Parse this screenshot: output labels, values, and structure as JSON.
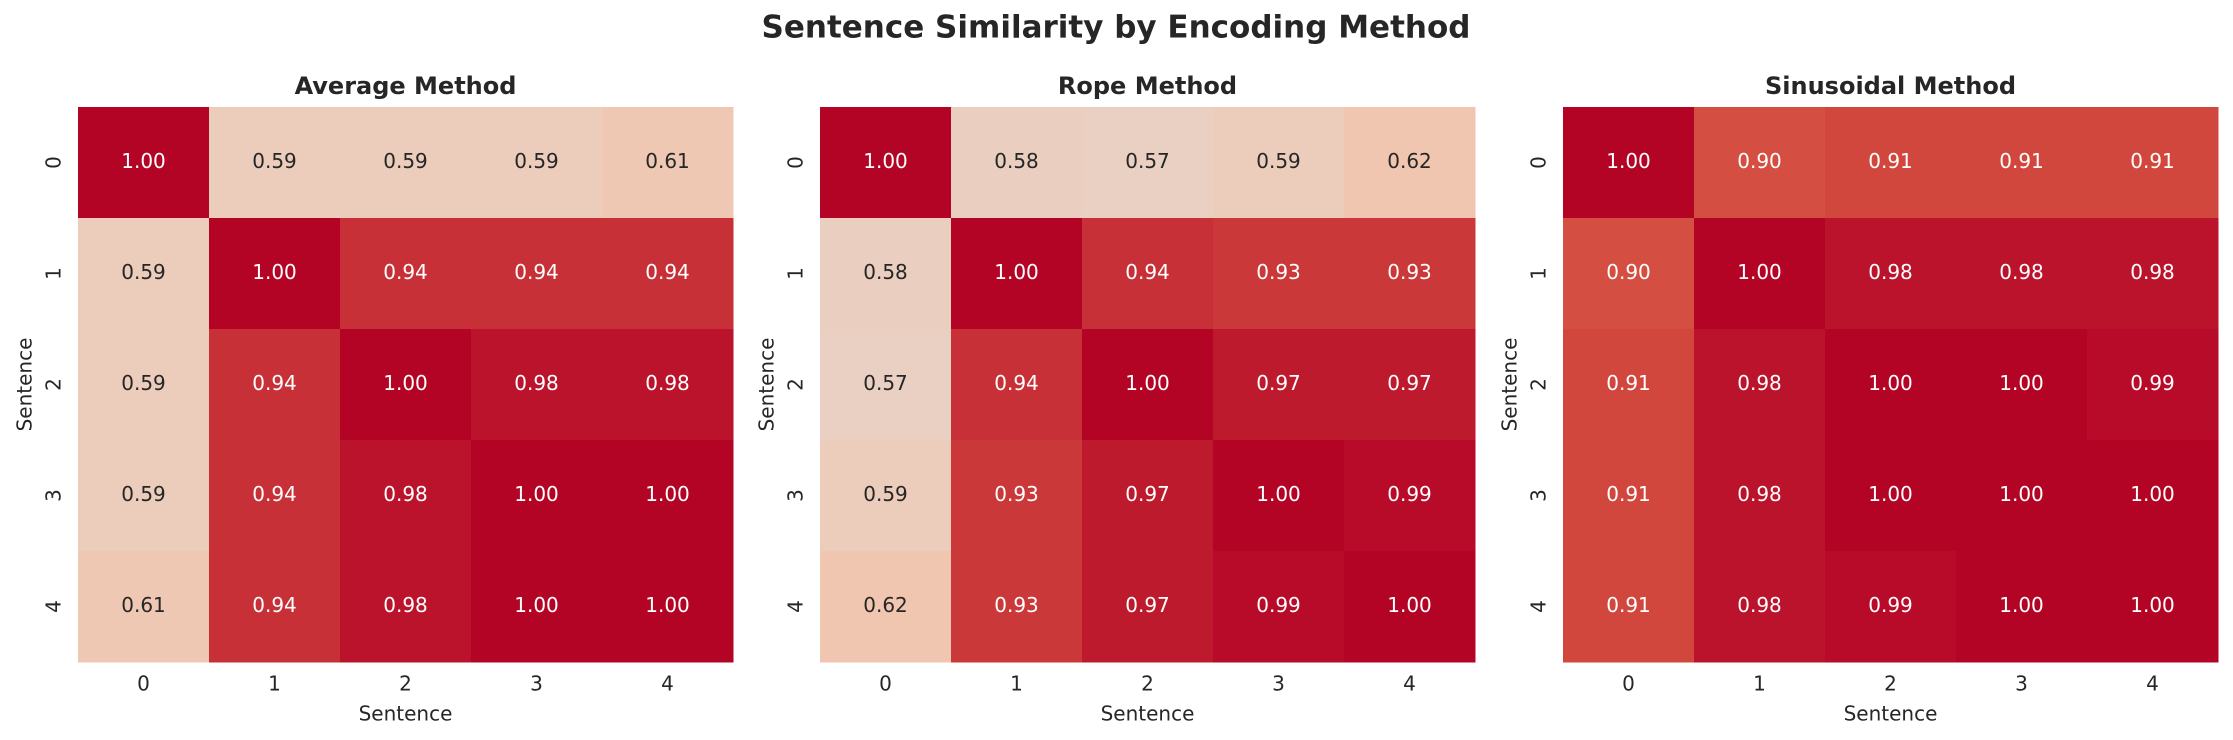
{
  "title": "Sentence Similarity by Encoding Method",
  "chart_data": [
    {
      "type": "heatmap",
      "title": "Average Method",
      "x_label": "Sentence",
      "y_label": "Sentence",
      "x": [
        0,
        1,
        2,
        3,
        4
      ],
      "y": [
        0,
        1,
        2,
        3,
        4
      ],
      "values": [
        [
          1.0,
          0.59,
          0.59,
          0.59,
          0.61
        ],
        [
          0.59,
          1.0,
          0.94,
          0.94,
          0.94
        ],
        [
          0.59,
          0.94,
          1.0,
          0.98,
          0.98
        ],
        [
          0.59,
          0.94,
          0.98,
          1.0,
          1.0
        ],
        [
          0.61,
          0.94,
          0.98,
          1.0,
          1.0
        ]
      ],
      "value_labels": [
        [
          "1.00",
          "0.59",
          "0.59",
          "0.59",
          "0.61"
        ],
        [
          "0.59",
          "1.00",
          "0.94",
          "0.94",
          "0.94"
        ],
        [
          "0.59",
          "0.94",
          "1.00",
          "0.98",
          "0.98"
        ],
        [
          "0.59",
          "0.94",
          "0.98",
          "1.00",
          "1.00"
        ],
        [
          "0.61",
          "0.94",
          "0.98",
          "1.00",
          "1.00"
        ]
      ],
      "clim": [
        0,
        1
      ],
      "colormap": [
        {
          "value": 0,
          "color": "#3b4cc0"
        },
        {
          "value": 0.25,
          "color": "#7b9ff9"
        },
        {
          "value": 0.5,
          "color": "#dddddd"
        },
        {
          "value": 0.62,
          "color": "#f1c6b0"
        },
        {
          "value": 0.75,
          "color": "#f49a7b"
        },
        {
          "value": 0.9,
          "color": "#d44e41"
        },
        {
          "value": 1,
          "color": "#b40426"
        }
      ]
    },
    {
      "type": "heatmap",
      "title": "Rope Method",
      "x_label": "Sentence",
      "y_label": "Sentence",
      "x": [
        0,
        1,
        2,
        3,
        4
      ],
      "y": [
        0,
        1,
        2,
        3,
        4
      ],
      "values": [
        [
          1.0,
          0.58,
          0.57,
          0.59,
          0.62
        ],
        [
          0.58,
          1.0,
          0.94,
          0.93,
          0.93
        ],
        [
          0.57,
          0.94,
          1.0,
          0.97,
          0.97
        ],
        [
          0.59,
          0.93,
          0.97,
          1.0,
          0.99
        ],
        [
          0.62,
          0.93,
          0.97,
          0.99,
          1.0
        ]
      ],
      "value_labels": [
        [
          "1.00",
          "0.58",
          "0.57",
          "0.59",
          "0.62"
        ],
        [
          "0.58",
          "1.00",
          "0.94",
          "0.93",
          "0.93"
        ],
        [
          "0.57",
          "0.94",
          "1.00",
          "0.97",
          "0.97"
        ],
        [
          "0.59",
          "0.93",
          "0.97",
          "1.00",
          "0.99"
        ],
        [
          "0.62",
          "0.93",
          "0.97",
          "0.99",
          "1.00"
        ]
      ],
      "clim": [
        0,
        1
      ],
      "colormap": [
        {
          "value": 0,
          "color": "#3b4cc0"
        },
        {
          "value": 0.25,
          "color": "#7b9ff9"
        },
        {
          "value": 0.5,
          "color": "#dddddd"
        },
        {
          "value": 0.62,
          "color": "#f1c6b0"
        },
        {
          "value": 0.75,
          "color": "#f49a7b"
        },
        {
          "value": 0.9,
          "color": "#d44e41"
        },
        {
          "value": 1,
          "color": "#b40426"
        }
      ]
    },
    {
      "type": "heatmap",
      "title": "Sinusoidal Method",
      "x_label": "Sentence",
      "y_label": "Sentence",
      "x": [
        0,
        1,
        2,
        3,
        4
      ],
      "y": [
        0,
        1,
        2,
        3,
        4
      ],
      "values": [
        [
          1.0,
          0.9,
          0.91,
          0.91,
          0.91
        ],
        [
          0.9,
          1.0,
          0.98,
          0.98,
          0.98
        ],
        [
          0.91,
          0.98,
          1.0,
          1.0,
          0.99
        ],
        [
          0.91,
          0.98,
          1.0,
          1.0,
          1.0
        ],
        [
          0.91,
          0.98,
          0.99,
          1.0,
          1.0
        ]
      ],
      "value_labels": [
        [
          "1.00",
          "0.90",
          "0.91",
          "0.91",
          "0.91"
        ],
        [
          "0.90",
          "1.00",
          "0.98",
          "0.98",
          "0.98"
        ],
        [
          "0.91",
          "0.98",
          "1.00",
          "1.00",
          "0.99"
        ],
        [
          "0.91",
          "0.98",
          "1.00",
          "1.00",
          "1.00"
        ],
        [
          "0.91",
          "0.98",
          "0.99",
          "1.00",
          "1.00"
        ]
      ],
      "clim": [
        0,
        1
      ],
      "colormap": [
        {
          "value": 0,
          "color": "#3b4cc0"
        },
        {
          "value": 0.25,
          "color": "#7b9ff9"
        },
        {
          "value": 0.5,
          "color": "#dddddd"
        },
        {
          "value": 0.62,
          "color": "#f1c6b0"
        },
        {
          "value": 0.75,
          "color": "#f49a7b"
        },
        {
          "value": 0.9,
          "color": "#d44e41"
        },
        {
          "value": 1,
          "color": "#b40426"
        }
      ]
    }
  ]
}
